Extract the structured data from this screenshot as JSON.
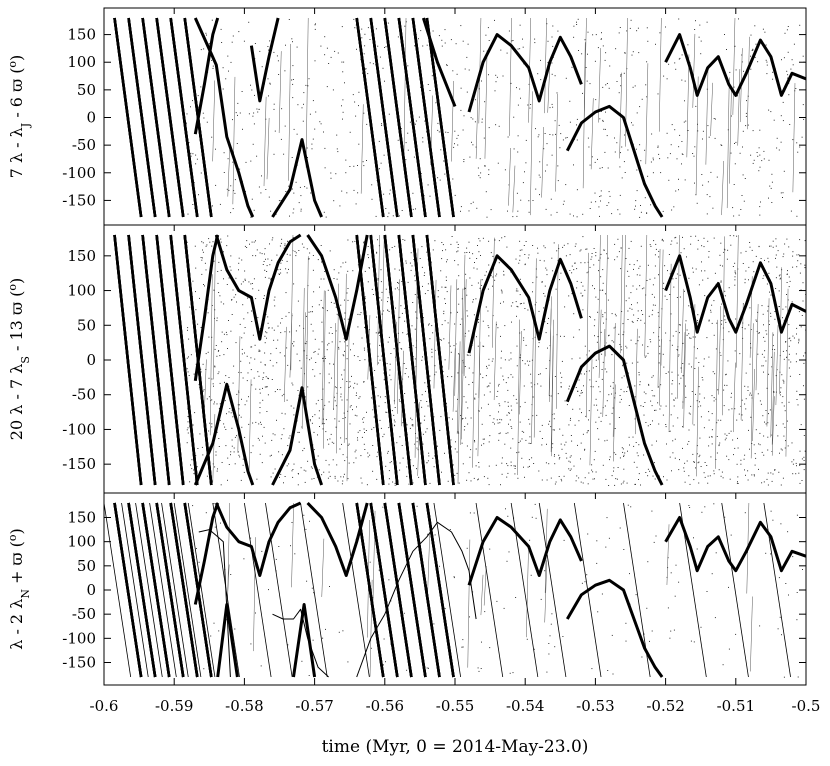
{
  "figure": {
    "xlabel": "time (Myr, 0 = 2014-May-23.0)"
  },
  "chart_data": [
    {
      "type": "line",
      "ylabel_parts": [
        "7 λ - λ",
        "J",
        " - 6 ϖ (",
        "o",
        ")"
      ],
      "xlim": [
        -0.6,
        -0.5
      ],
      "ylim": [
        -180,
        180
      ],
      "yticks": [
        150,
        100,
        50,
        0,
        -50,
        -100,
        -150
      ],
      "background_density": "medium",
      "series": [
        {
          "style": "thick",
          "points": [
            [
              -0.587,
              -30
            ],
            [
              -0.5857,
              60
            ],
            [
              -0.5845,
              150
            ],
            [
              -0.5838,
              180
            ]
          ]
        },
        {
          "style": "thick",
          "points": [
            [
              -0.587,
              180
            ],
            [
              -0.584,
              95
            ],
            [
              -0.5825,
              -35
            ],
            [
              -0.5808,
              -100
            ],
            [
              -0.5795,
              -160
            ],
            [
              -0.5788,
              -180
            ]
          ]
        },
        {
          "style": "thick",
          "points": [
            [
              -0.579,
              130
            ],
            [
              -0.5778,
              30
            ],
            [
              -0.5765,
              110
            ],
            [
              -0.5752,
              180
            ]
          ]
        },
        {
          "style": "thick",
          "points": [
            [
              -0.576,
              -180
            ],
            [
              -0.5735,
              -130
            ],
            [
              -0.5718,
              -40
            ],
            [
              -0.57,
              -150
            ],
            [
              -0.569,
              -180
            ]
          ]
        },
        {
          "style": "thick",
          "points": [
            [
              -0.5545,
              180
            ],
            [
              -0.5525,
              100
            ],
            [
              -0.55,
              20
            ]
          ]
        },
        {
          "style": "thick",
          "points": [
            [
              -0.548,
              10
            ],
            [
              -0.546,
              100
            ],
            [
              -0.544,
              150
            ],
            [
              -0.542,
              130
            ],
            [
              -0.5395,
              90
            ],
            [
              -0.538,
              30
            ],
            [
              -0.5365,
              100
            ],
            [
              -0.535,
              145
            ],
            [
              -0.5335,
              110
            ],
            [
              -0.532,
              60
            ]
          ]
        },
        {
          "style": "thick",
          "points": [
            [
              -0.534,
              -60
            ],
            [
              -0.532,
              -10
            ],
            [
              -0.53,
              10
            ],
            [
              -0.528,
              20
            ],
            [
              -0.526,
              0
            ],
            [
              -0.5245,
              -60
            ],
            [
              -0.523,
              -120
            ],
            [
              -0.5215,
              -160
            ],
            [
              -0.5205,
              -180
            ]
          ]
        },
        {
          "style": "thick",
          "points": [
            [
              -0.52,
              100
            ],
            [
              -0.518,
              150
            ],
            [
              -0.5165,
              90
            ],
            [
              -0.5155,
              40
            ],
            [
              -0.514,
              90
            ],
            [
              -0.5125,
              110
            ],
            [
              -0.511,
              60
            ],
            [
              -0.51,
              40
            ],
            [
              -0.5085,
              80
            ],
            [
              -0.5065,
              140
            ],
            [
              -0.505,
              110
            ],
            [
              -0.5035,
              40
            ],
            [
              -0.502,
              80
            ],
            [
              -0.5,
              70
            ]
          ]
        }
      ]
    },
    {
      "type": "line",
      "ylabel_parts": [
        "20 λ - 7 λ",
        "S",
        " - 13 ϖ (",
        "o",
        ")"
      ],
      "xlim": [
        -0.6,
        -0.5
      ],
      "ylim": [
        -180,
        180
      ],
      "yticks": [
        150,
        100,
        50,
        0,
        -50,
        -100,
        -150
      ],
      "background_density": "high",
      "series": [
        {
          "style": "thick",
          "points": [
            [
              -0.587,
              -30
            ],
            [
              -0.5857,
              60
            ],
            [
              -0.5845,
              150
            ],
            [
              -0.5838,
              180
            ]
          ]
        },
        {
          "style": "thick",
          "points": [
            [
              -0.584,
              180
            ],
            [
              -0.5825,
              130
            ],
            [
              -0.5808,
              100
            ],
            [
              -0.579,
              90
            ],
            [
              -0.5778,
              30
            ],
            [
              -0.5765,
              100
            ],
            [
              -0.5752,
              140
            ],
            [
              -0.5735,
              170
            ],
            [
              -0.572,
              180
            ]
          ]
        },
        {
          "style": "thick",
          "points": [
            [
              -0.587,
              -180
            ],
            [
              -0.5845,
              -120
            ],
            [
              -0.5825,
              -35
            ],
            [
              -0.5808,
              -100
            ],
            [
              -0.5795,
              -160
            ],
            [
              -0.5788,
              -180
            ]
          ]
        },
        {
          "style": "thick",
          "points": [
            [
              -0.576,
              -180
            ],
            [
              -0.5735,
              -130
            ],
            [
              -0.5718,
              -40
            ],
            [
              -0.57,
              -150
            ],
            [
              -0.569,
              -180
            ]
          ]
        },
        {
          "style": "thick",
          "points": [
            [
              -0.571,
              180
            ],
            [
              -0.569,
              150
            ],
            [
              -0.567,
              90
            ],
            [
              -0.5655,
              30
            ],
            [
              -0.564,
              100
            ],
            [
              -0.5625,
              180
            ]
          ]
        },
        {
          "style": "thick",
          "points": [
            [
              -0.548,
              10
            ],
            [
              -0.546,
              100
            ],
            [
              -0.544,
              150
            ],
            [
              -0.542,
              130
            ],
            [
              -0.5395,
              90
            ],
            [
              -0.538,
              30
            ],
            [
              -0.5365,
              100
            ],
            [
              -0.535,
              145
            ],
            [
              -0.5335,
              110
            ],
            [
              -0.532,
              60
            ]
          ]
        },
        {
          "style": "thick",
          "points": [
            [
              -0.534,
              -60
            ],
            [
              -0.532,
              -10
            ],
            [
              -0.53,
              10
            ],
            [
              -0.528,
              20
            ],
            [
              -0.526,
              0
            ],
            [
              -0.5245,
              -60
            ],
            [
              -0.523,
              -120
            ],
            [
              -0.5215,
              -160
            ],
            [
              -0.5205,
              -180
            ]
          ]
        },
        {
          "style": "thick",
          "points": [
            [
              -0.52,
              100
            ],
            [
              -0.518,
              150
            ],
            [
              -0.5165,
              90
            ],
            [
              -0.5155,
              40
            ],
            [
              -0.514,
              90
            ],
            [
              -0.5125,
              110
            ],
            [
              -0.511,
              60
            ],
            [
              -0.51,
              40
            ],
            [
              -0.5085,
              80
            ],
            [
              -0.5065,
              140
            ],
            [
              -0.505,
              110
            ],
            [
              -0.5035,
              40
            ],
            [
              -0.502,
              80
            ],
            [
              -0.5,
              70
            ]
          ]
        }
      ]
    },
    {
      "type": "line",
      "ylabel_parts": [
        "λ - 2 λ",
        "N",
        " + ϖ (",
        "o",
        ")"
      ],
      "xlim": [
        -0.6,
        -0.5
      ],
      "ylim": [
        -180,
        180
      ],
      "yticks": [
        150,
        100,
        50,
        0,
        -50,
        -100,
        -150
      ],
      "background_density": "low",
      "series": [
        {
          "style": "thick",
          "points": [
            [
              -0.587,
              -30
            ],
            [
              -0.5857,
              60
            ],
            [
              -0.5845,
              150
            ],
            [
              -0.5838,
              180
            ]
          ]
        },
        {
          "style": "thick",
          "points": [
            [
              -0.584,
              180
            ],
            [
              -0.5825,
              130
            ],
            [
              -0.5808,
              100
            ],
            [
              -0.579,
              90
            ],
            [
              -0.5778,
              30
            ],
            [
              -0.5765,
              100
            ],
            [
              -0.5752,
              140
            ],
            [
              -0.5735,
              170
            ],
            [
              -0.572,
              180
            ]
          ]
        },
        {
          "style": "thick",
          "points": [
            [
              -0.5838,
              -180
            ],
            [
              -0.5825,
              -30
            ],
            [
              -0.581,
              -180
            ]
          ]
        },
        {
          "style": "thick",
          "points": [
            [
              -0.573,
              -180
            ],
            [
              -0.5715,
              -30
            ],
            [
              -0.57,
              -180
            ]
          ]
        },
        {
          "style": "thick",
          "points": [
            [
              -0.571,
              180
            ],
            [
              -0.569,
              150
            ],
            [
              -0.567,
              90
            ],
            [
              -0.5655,
              30
            ],
            [
              -0.564,
              100
            ],
            [
              -0.5625,
              180
            ]
          ]
        },
        {
          "style": "thick",
          "points": [
            [
              -0.548,
              10
            ],
            [
              -0.546,
              100
            ],
            [
              -0.544,
              150
            ],
            [
              -0.542,
              130
            ],
            [
              -0.5395,
              90
            ],
            [
              -0.538,
              30
            ],
            [
              -0.5365,
              100
            ],
            [
              -0.535,
              145
            ],
            [
              -0.5335,
              110
            ],
            [
              -0.532,
              60
            ]
          ]
        },
        {
          "style": "thick",
          "points": [
            [
              -0.534,
              -60
            ],
            [
              -0.532,
              -10
            ],
            [
              -0.53,
              10
            ],
            [
              -0.528,
              20
            ],
            [
              -0.526,
              0
            ],
            [
              -0.5245,
              -60
            ],
            [
              -0.523,
              -120
            ],
            [
              -0.5215,
              -160
            ],
            [
              -0.5205,
              -180
            ]
          ]
        },
        {
          "style": "thick",
          "points": [
            [
              -0.52,
              100
            ],
            [
              -0.518,
              150
            ],
            [
              -0.5165,
              90
            ],
            [
              -0.5155,
              40
            ],
            [
              -0.514,
              90
            ],
            [
              -0.5125,
              110
            ],
            [
              -0.511,
              60
            ],
            [
              -0.51,
              40
            ],
            [
              -0.5085,
              80
            ],
            [
              -0.5065,
              140
            ],
            [
              -0.505,
              110
            ],
            [
              -0.5035,
              40
            ],
            [
              -0.502,
              80
            ],
            [
              -0.5,
              70
            ]
          ]
        },
        {
          "style": "thin",
          "points": [
            [
              -0.5865,
              120
            ],
            [
              -0.585,
              125
            ],
            [
              -0.5838,
              110
            ],
            [
              -0.583,
              100
            ],
            [
              -0.582,
              -180
            ]
          ]
        },
        {
          "style": "thin",
          "points": [
            [
              -0.576,
              -50
            ],
            [
              -0.5745,
              -60
            ],
            [
              -0.573,
              -60
            ],
            [
              -0.572,
              -40
            ],
            [
              -0.571,
              -100
            ],
            [
              -0.5695,
              -160
            ],
            [
              -0.568,
              -180
            ]
          ]
        },
        {
          "style": "thin",
          "points": [
            [
              -0.564,
              -180
            ],
            [
              -0.562,
              -100
            ],
            [
              -0.56,
              -50
            ],
            [
              -0.558,
              20
            ],
            [
              -0.556,
              80
            ],
            [
              -0.554,
              110
            ],
            [
              -0.5525,
              140
            ],
            [
              -0.5505,
              120
            ],
            [
              -0.549,
              80
            ],
            [
              -0.548,
              40
            ],
            [
              -0.547,
              -60
            ]
          ]
        }
      ],
      "steep_lines": {
        "x0": [
          -0.6,
          -0.5975,
          -0.5955,
          -0.5935,
          -0.5918,
          -0.59,
          -0.588,
          -0.5845,
          -0.58,
          -0.577,
          -0.572,
          -0.566,
          -0.562,
          -0.558,
          -0.553,
          -0.547,
          -0.542,
          -0.538,
          -0.533,
          -0.526,
          -0.518,
          -0.512,
          -0.506
        ]
      }
    }
  ],
  "shared_steep_thick": {
    "x_at_top": [
      -0.5985,
      -0.5965,
      -0.5945,
      -0.5925,
      -0.5905,
      -0.5885,
      -0.564,
      -0.562,
      -0.56,
      -0.558,
      -0.556,
      -0.554
    ],
    "slope_deg_per_myr": -95000
  },
  "xticks": [
    -0.6,
    -0.59,
    -0.58,
    -0.57,
    -0.56,
    -0.55,
    -0.54,
    -0.53,
    -0.52,
    -0.51,
    -0.5
  ],
  "xticklabels": [
    "-0.6",
    "-0.59",
    "-0.58",
    "-0.57",
    "-0.56",
    "-0.55",
    "-0.54",
    "-0.53",
    "-0.52",
    "-0.51",
    "-0.5"
  ]
}
